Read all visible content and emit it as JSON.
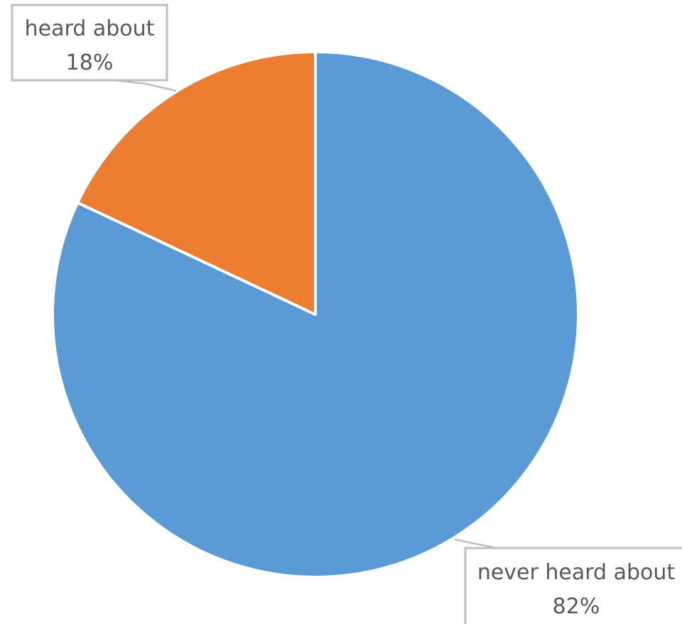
{
  "chart_data": {
    "type": "pie",
    "categories": [
      "never heard about",
      "heard about"
    ],
    "values": [
      82,
      18
    ],
    "value_labels": [
      "82%",
      "18%"
    ],
    "colors": [
      "#5b9bd5",
      "#ed7d31"
    ],
    "start": "12 o'clock, clockwise",
    "legend": "none",
    "data_labels": "callouts with category name and percentage"
  }
}
